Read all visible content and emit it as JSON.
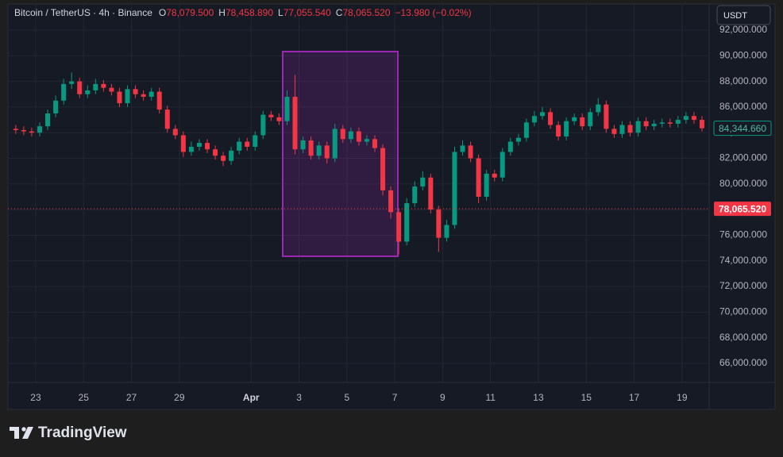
{
  "header": {
    "symbol": "Bitcoin / TetherUS · 4h · Binance",
    "ohlc": [
      {
        "key": "O",
        "value": "78,079.500"
      },
      {
        "key": "H",
        "value": "78,458.890"
      },
      {
        "key": "L",
        "value": "77,055.540"
      },
      {
        "key": "C",
        "value": "78,065.520"
      }
    ],
    "change": "−13.980 (−0.02%)"
  },
  "toolbar": {
    "currency": "USDT"
  },
  "brand": "TradingView",
  "chart_data": {
    "type": "candlestick",
    "up_color": "#089981",
    "down_color": "#f23645",
    "grid": true,
    "open": [
      84300,
      84200,
      84100,
      84000,
      84500,
      85500,
      86500,
      87800,
      88000,
      87000,
      87300,
      87800,
      87500,
      87200,
      86300,
      87400,
      87000,
      86800,
      87200,
      85800,
      84300,
      83800,
      82500,
      82900,
      83200,
      82700,
      82200,
      81800,
      82600,
      83300,
      82900,
      83800,
      85400,
      85200,
      84900,
      86800,
      82700,
      83400,
      82200,
      83000,
      82000,
      84300,
      83500,
      84100,
      83300,
      83500,
      82800,
      79500,
      77800,
      75500,
      78500,
      79800,
      80500,
      78000,
      75800,
      76800,
      82500,
      83000,
      82000,
      79000,
      80800,
      80500,
      82500,
      83300,
      83600,
      84800,
      85300,
      85600,
      84600,
      83700,
      84900,
      85200,
      84500,
      85600,
      86200,
      84300,
      83900,
      84600,
      84000,
      84900,
      84500,
      84700,
      84800,
      84700,
      85000,
      85300,
      85000
    ],
    "high": [
      84600,
      84500,
      84400,
      84800,
      85800,
      86900,
      88200,
      88700,
      88300,
      87700,
      88200,
      88100,
      87800,
      87500,
      87700,
      87700,
      87300,
      87500,
      87500,
      86100,
      84600,
      84100,
      83300,
      83500,
      83500,
      83000,
      82500,
      82900,
      83600,
      83600,
      84100,
      85700,
      85700,
      85500,
      87300,
      88500,
      83700,
      83700,
      83300,
      83300,
      84700,
      84600,
      84400,
      84400,
      83800,
      83800,
      83100,
      79800,
      78100,
      78900,
      80200,
      81000,
      80800,
      78300,
      77200,
      82900,
      83400,
      83300,
      82300,
      81100,
      81100,
      82800,
      83600,
      83900,
      85100,
      85700,
      86000,
      85900,
      84900,
      85200,
      85500,
      85500,
      85900,
      86700,
      86500,
      84600,
      84900,
      84900,
      85200,
      85200,
      85000,
      85100,
      85100,
      85300,
      85600,
      85600,
      85300
    ],
    "low": [
      83900,
      83800,
      83700,
      83700,
      84200,
      85200,
      86200,
      87400,
      86700,
      86700,
      87000,
      87200,
      86900,
      86000,
      86000,
      86700,
      86500,
      86500,
      85500,
      84000,
      83500,
      82100,
      82200,
      82600,
      82400,
      81900,
      81400,
      81500,
      82300,
      82600,
      82600,
      83500,
      84900,
      84600,
      84600,
      82300,
      82400,
      81900,
      81900,
      81600,
      81700,
      83200,
      83200,
      83000,
      83000,
      82500,
      79100,
      77300,
      74500,
      75200,
      78200,
      79500,
      77700,
      74700,
      75500,
      76500,
      82200,
      81700,
      78500,
      78700,
      80200,
      80200,
      82200,
      83000,
      83300,
      84500,
      85000,
      84300,
      83400,
      83400,
      84600,
      84200,
      84200,
      85300,
      84000,
      83600,
      83600,
      83700,
      83700,
      84200,
      84200,
      84400,
      84400,
      84400,
      84700,
      84700,
      84100
    ],
    "close": [
      84200,
      84100,
      84000,
      84500,
      85500,
      86500,
      87800,
      88000,
      87000,
      87300,
      87800,
      87500,
      87200,
      86300,
      87400,
      87000,
      86800,
      87200,
      85800,
      84300,
      83800,
      82500,
      82900,
      83200,
      82700,
      82200,
      81800,
      82600,
      83300,
      82900,
      83800,
      85400,
      85200,
      84900,
      86800,
      82700,
      83400,
      82200,
      83000,
      82000,
      84300,
      83500,
      84100,
      83300,
      83500,
      82800,
      79500,
      77800,
      75500,
      78500,
      79800,
      80500,
      78000,
      75800,
      76800,
      82500,
      83000,
      82000,
      79000,
      80800,
      80500,
      82500,
      83300,
      83600,
      84800,
      85300,
      85600,
      84600,
      83700,
      84900,
      85200,
      84500,
      85600,
      86200,
      84300,
      83900,
      84600,
      84000,
      84900,
      84500,
      84700,
      84800,
      84700,
      85000,
      85300,
      85000,
      84344.66
    ],
    "ylim": [
      64514,
      93733
    ],
    "yticks": [
      {
        "value": 66000,
        "label": "66,000.000"
      },
      {
        "value": 68000,
        "label": "68,000.000"
      },
      {
        "value": 70000,
        "label": "70,000.000"
      },
      {
        "value": 72000,
        "label": "72,000.000"
      },
      {
        "value": 74000,
        "label": "74,000.000"
      },
      {
        "value": 76000,
        "label": "76,000.000"
      },
      {
        "value": 78000,
        "label": "78,000.000"
      },
      {
        "value": 80000,
        "label": "80,000.000"
      },
      {
        "value": 82000,
        "label": "82,000.000"
      },
      {
        "value": 84000,
        "label": "84,000.000"
      },
      {
        "value": 86000,
        "label": "86,000.000"
      },
      {
        "value": 88000,
        "label": "88,000.000"
      },
      {
        "value": 90000,
        "label": "90,000.000"
      },
      {
        "value": 92000,
        "label": "92,000.000"
      }
    ],
    "xlim": [
      -0.98,
      86.9
    ],
    "xticks": [
      {
        "value": 2.5,
        "label": "23"
      },
      {
        "value": 8.5,
        "label": "25"
      },
      {
        "value": 14.5,
        "label": "27"
      },
      {
        "value": 20.5,
        "label": "29"
      },
      {
        "value": 29.5,
        "label": "Apr"
      },
      {
        "value": 35.5,
        "label": "3"
      },
      {
        "value": 41.5,
        "label": "5"
      },
      {
        "value": 47.5,
        "label": "7"
      },
      {
        "value": 53.5,
        "label": "9"
      },
      {
        "value": 59.5,
        "label": "11"
      },
      {
        "value": 65.5,
        "label": "13"
      },
      {
        "value": 71.5,
        "label": "15"
      },
      {
        "value": 77.5,
        "label": "17"
      },
      {
        "value": 83.5,
        "label": "19"
      }
    ],
    "last_price": {
      "value": 84344.66,
      "label": "84,344.660"
    },
    "crosshair_price": {
      "value": 78065.52,
      "label": "78,065.520"
    }
  }
}
